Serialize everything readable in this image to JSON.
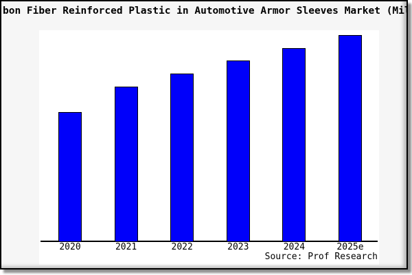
{
  "title": "bon Fiber Reinforced Plastic in Automotive Armor Sleeves Market (Mil",
  "source": "Source: Prof Research",
  "chart_data": {
    "type": "bar",
    "title": "bon Fiber Reinforced Plastic in Automotive Armor Sleeves Market (Mil",
    "categories": [
      "2020",
      "2021",
      "2022",
      "2023",
      "2024",
      "2025e"
    ],
    "values": [
      62.8,
      75.1,
      81.4,
      87.7,
      93.7,
      100
    ],
    "values_unit": "relative (chart shows no y-axis scale or value labels)",
    "xlabel": "",
    "ylabel": "",
    "grid": false,
    "legend": "none",
    "y_axis_visible": false,
    "value_labels_visible": false,
    "bar_color": "#0000fa",
    "bar_edge_color": "#000000"
  },
  "colors": {
    "figure_background": "#f6f6f6",
    "plot_background": "#ffffff",
    "frame_border": "#000000",
    "drop_shadow": "#8f8f8f",
    "text": "#000000"
  }
}
